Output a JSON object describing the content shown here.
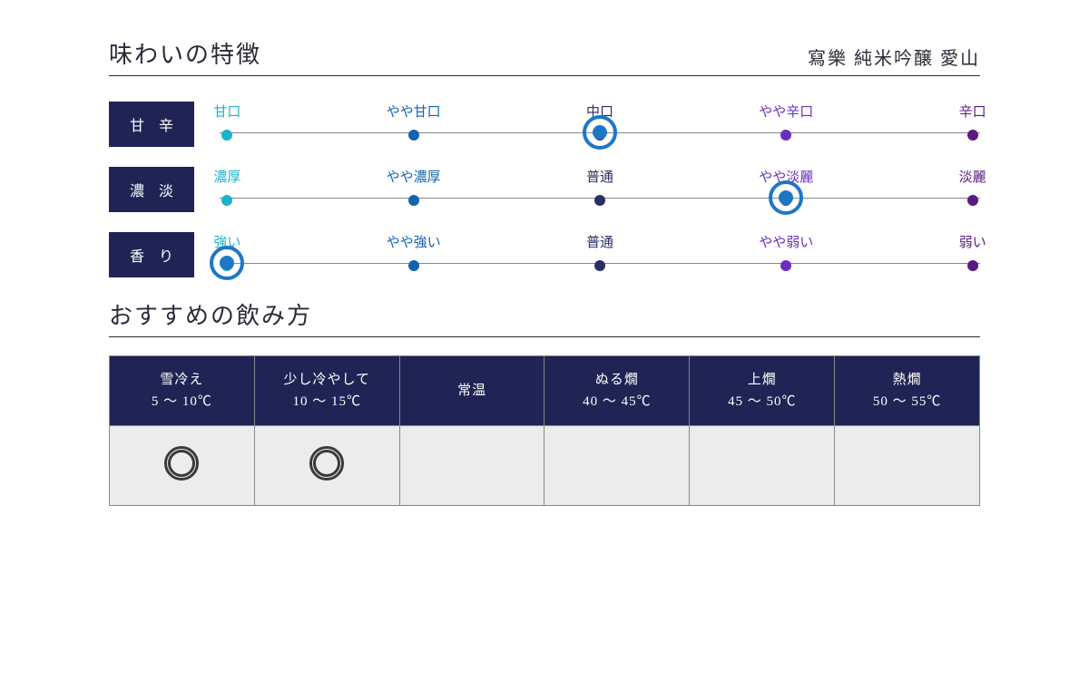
{
  "title_flavor": "味わいの特徴",
  "title_serving": "おすすめの飲み方",
  "product_name": "寫樂 純米吟醸 愛山",
  "colors": {
    "label_bg": "#1f2454",
    "label_fg": "#ffffff",
    "accent_sel": "#1d77c7",
    "grid": "#888888",
    "cell_bg": "#ececec",
    "text": "#2a2a3a"
  },
  "scale_stop_colors": [
    "#1bb3cc",
    "#1463b0",
    "#2a2f63",
    "#6b2fbf",
    "#5a1a7f"
  ],
  "scales": [
    {
      "name": "甘 辛",
      "labels": [
        "甘口",
        "やや甘口",
        "中口",
        "やや辛口",
        "辛口"
      ],
      "selected_index": 2
    },
    {
      "name": "濃 淡",
      "labels": [
        "濃厚",
        "やや濃厚",
        "普通",
        "やや淡麗",
        "淡麗"
      ],
      "selected_index": 3
    },
    {
      "name": "香 り",
      "labels": [
        "強い",
        "やや強い",
        "普通",
        "やや弱い",
        "弱い"
      ],
      "selected_index": 0
    }
  ],
  "temperatures": [
    {
      "name": "雪冷え",
      "range": "5 ～ 10℃",
      "recommended": true
    },
    {
      "name": "少し冷やして",
      "range": "10 ～ 15℃",
      "recommended": true
    },
    {
      "name": "常温",
      "range": "",
      "recommended": false
    },
    {
      "name": "ぬる燗",
      "range": "40 ～ 45℃",
      "recommended": false
    },
    {
      "name": "上燗",
      "range": "45 ～ 50℃",
      "recommended": false
    },
    {
      "name": "熱燗",
      "range": "50 ～ 55℃",
      "recommended": false
    }
  ],
  "stop_positions_pct": [
    1,
    25.5,
    50,
    74.5,
    99
  ]
}
